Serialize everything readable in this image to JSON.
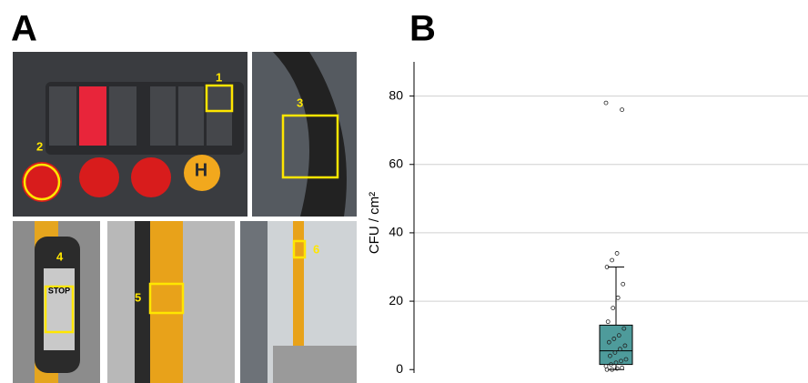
{
  "panels": {
    "a": "A",
    "b": "B"
  },
  "photo_labels": [
    "1",
    "2",
    "3",
    "4",
    "5",
    "6"
  ],
  "photo_texts": {
    "stop": "STOP",
    "hold": "H"
  },
  "chart_data": {
    "type": "box",
    "ylabel": "CFU / cm²",
    "color": "#4e9b9b",
    "ylim": [
      -1,
      90
    ],
    "yticks": [
      0,
      20,
      40,
      60,
      80
    ],
    "grid": true,
    "stats": {
      "min": 0,
      "q1": 1.5,
      "median": 5.5,
      "q3": 13,
      "max": 30
    },
    "points": [
      78,
      76,
      34,
      32,
      30,
      25,
      21,
      18,
      14,
      12,
      10,
      9,
      8,
      7,
      6,
      5,
      4,
      3,
      2.5,
      2,
      1.5,
      1,
      0.5,
      0.3,
      0,
      0
    ]
  }
}
